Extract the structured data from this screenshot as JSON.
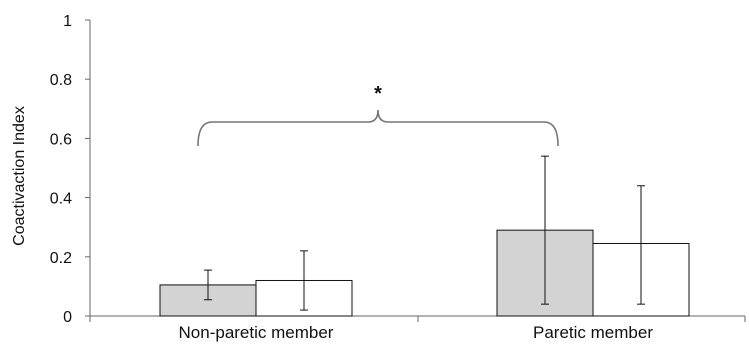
{
  "chart_data": {
    "type": "bar",
    "title": "",
    "xlabel": "",
    "ylabel": "Coactivaction Index",
    "ylim": [
      0,
      1
    ],
    "yticks": [
      "0",
      "0.2",
      "0.4",
      "0.6",
      "0.8",
      "1"
    ],
    "categories": [
      "Non-paretic member",
      "Paretic member"
    ],
    "series": [
      {
        "values": [
          0.105,
          0.29
        ],
        "error_low": [
          0.055,
          0.04
        ],
        "error_high": [
          0.155,
          0.54
        ],
        "color": "#d3d3d3"
      },
      {
        "values": [
          0.12,
          0.245
        ],
        "error_low": [
          0.02,
          0.04
        ],
        "error_high": [
          0.22,
          0.44
        ],
        "color": "#ffffff"
      }
    ],
    "annotation": "*",
    "grid": false,
    "legend": "none"
  }
}
